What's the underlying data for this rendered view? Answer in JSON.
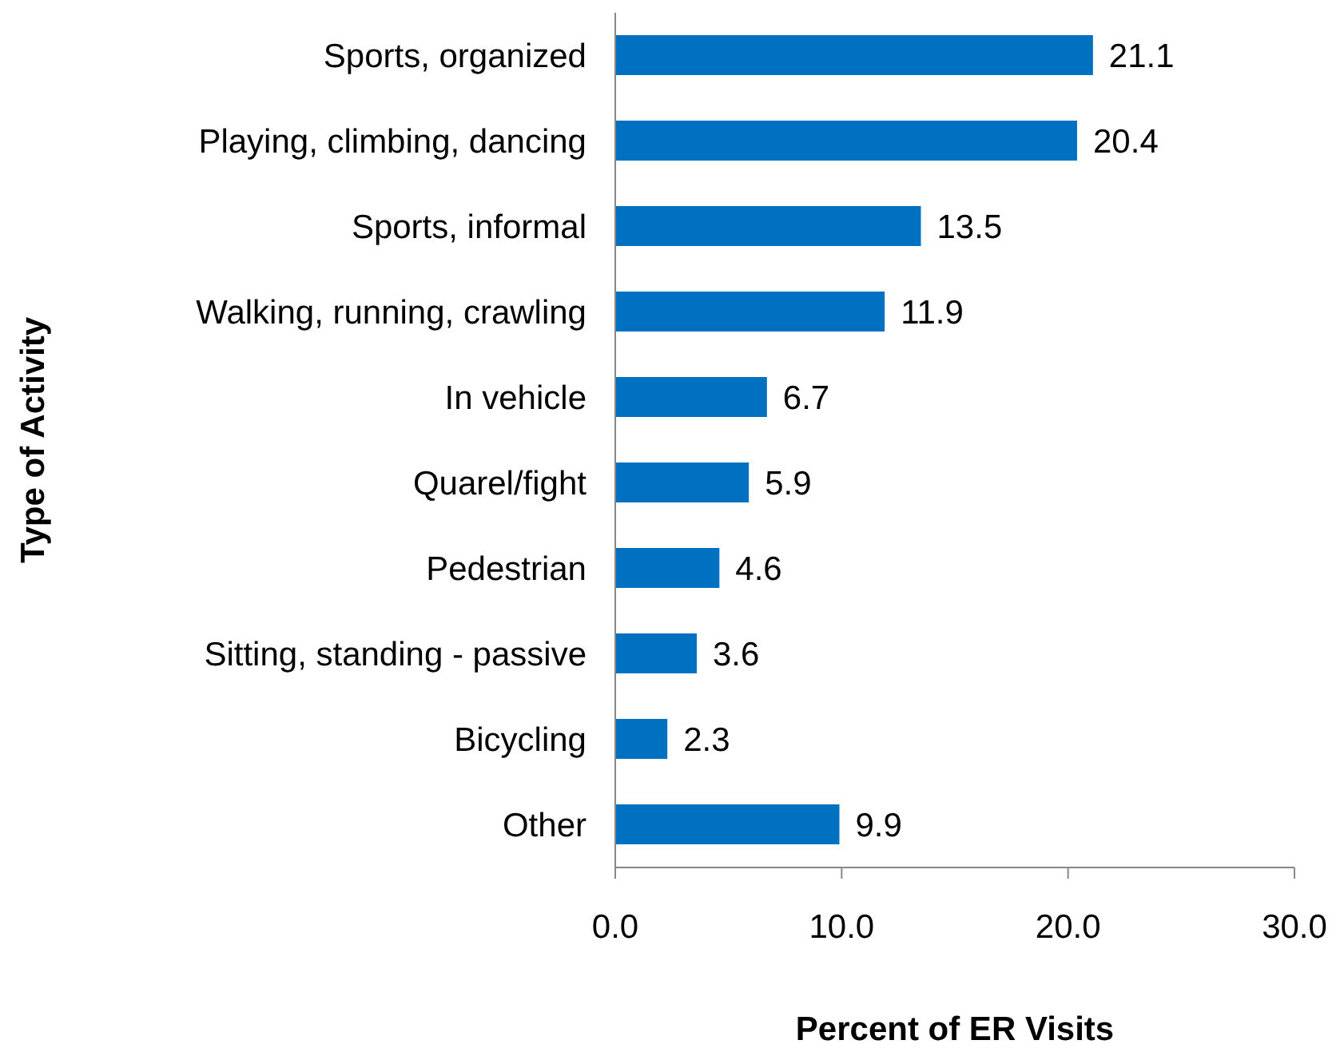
{
  "chart_data": {
    "type": "bar",
    "orientation": "horizontal",
    "xlabel": "Percent of ER Visits",
    "ylabel": "Type of Activity",
    "categories": [
      "Sports, organized",
      "Playing, climbing, dancing",
      "Sports, informal",
      "Walking, running, crawling",
      "In vehicle",
      "Quarel/fight",
      "Pedestrian",
      "Sitting, standing - passive",
      "Bicycling",
      "Other"
    ],
    "values": [
      21.1,
      20.4,
      13.5,
      11.9,
      6.7,
      5.9,
      4.6,
      3.6,
      2.3,
      9.9
    ],
    "color": "#0070c0",
    "xlim": [
      0,
      30
    ],
    "xticks": [
      {
        "value": 0,
        "label": "0.0"
      },
      {
        "value": 10,
        "label": "10.0"
      },
      {
        "value": 20,
        "label": "20.0"
      },
      {
        "value": 30,
        "label": "30.0"
      }
    ],
    "data_labels": true,
    "grid": false
  }
}
